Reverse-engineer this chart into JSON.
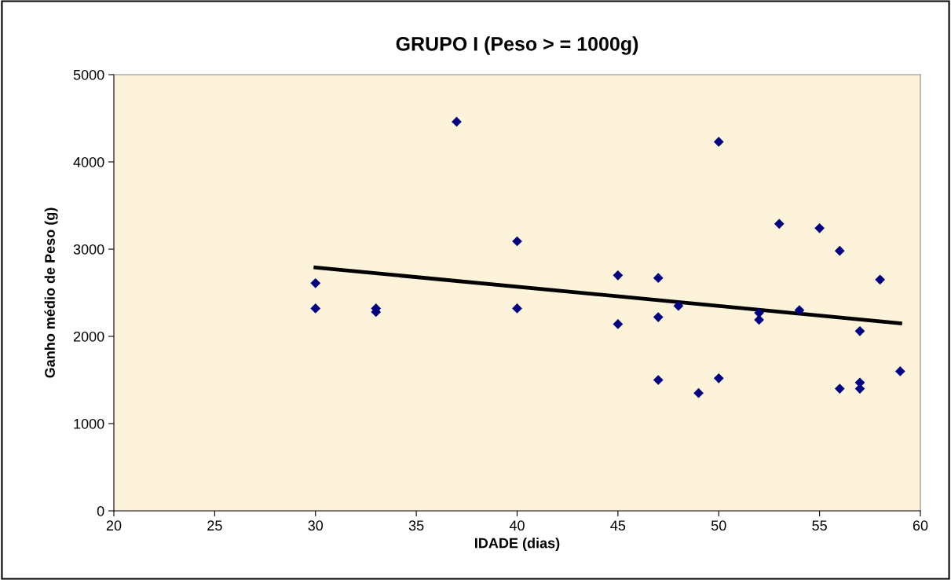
{
  "chart_data": {
    "type": "scatter",
    "title": "GRUPO I (Peso > = 1000g)",
    "xlabel": "IDADE (dias)",
    "ylabel": "Ganho médio de Peso (g)",
    "xlim": [
      20,
      60
    ],
    "xticks": [
      20,
      25,
      30,
      35,
      40,
      45,
      50,
      55,
      60
    ],
    "ylim": [
      0,
      5000
    ],
    "yticks": [
      0,
      1000,
      2000,
      3000,
      4000,
      5000
    ],
    "grid": false,
    "series": [
      {
        "marker": "diamond",
        "color": "#000080",
        "x": [
          30,
          30,
          33,
          33,
          37,
          40,
          40,
          45,
          45,
          47,
          47,
          47,
          48,
          49,
          50,
          50,
          52,
          52,
          53,
          54,
          55,
          56,
          56,
          57,
          57,
          57,
          58,
          59
        ],
        "values": [
          2610,
          2320,
          2320,
          2280,
          4460,
          3090,
          2320,
          2700,
          2140,
          2670,
          2220,
          1500,
          2350,
          1350,
          4230,
          1520,
          2270,
          2190,
          3290,
          2300,
          3240,
          2980,
          1400,
          2060,
          1470,
          1400,
          2650,
          1600
        ]
      },
      {
        "type": "line",
        "color": "#000000",
        "x": [
          30,
          59
        ],
        "values": [
          2790,
          2150
        ]
      }
    ]
  }
}
